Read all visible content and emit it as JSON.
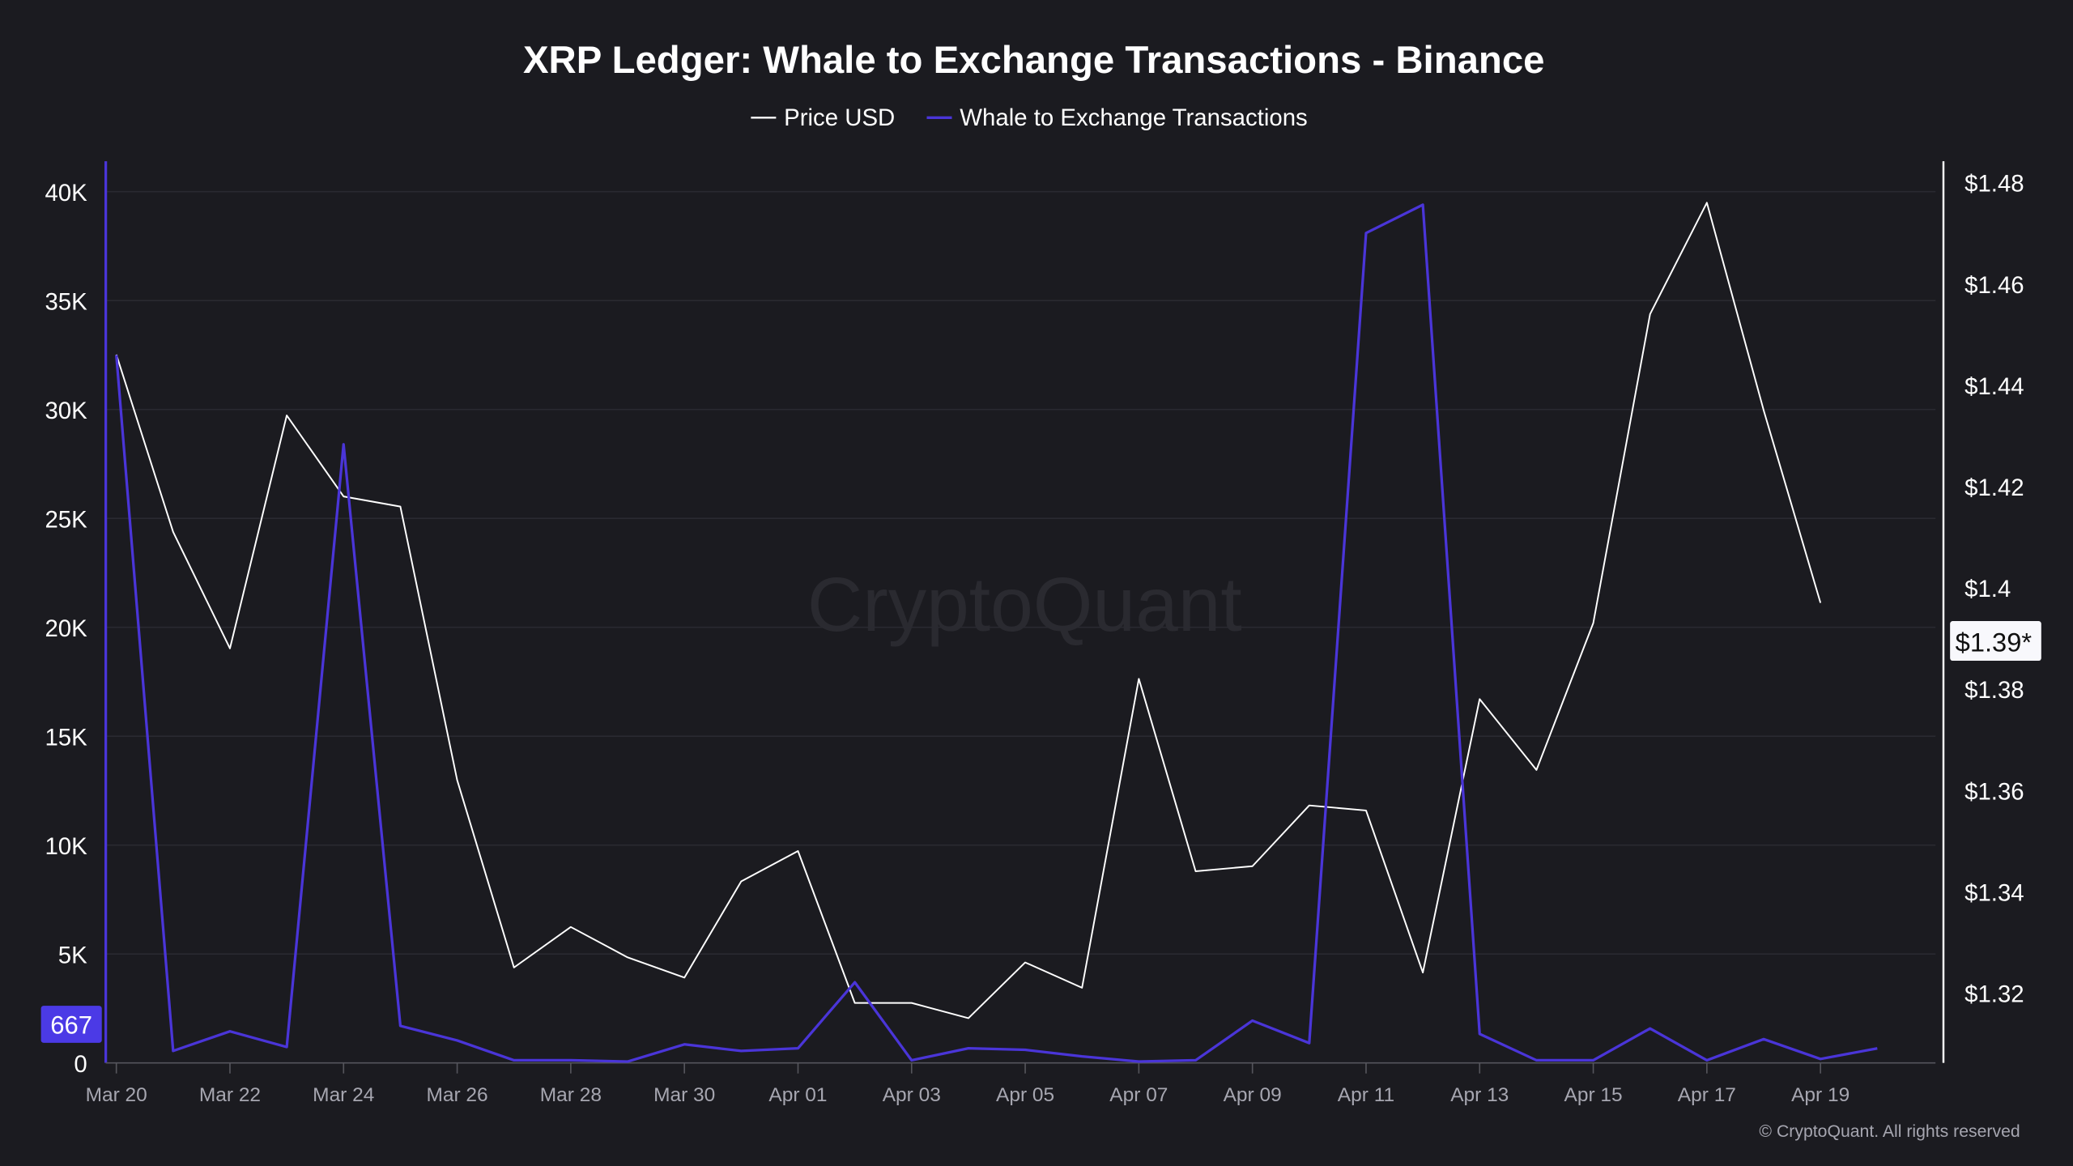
{
  "chart_data": {
    "type": "line",
    "title": "XRP Ledger: Whale to Exchange Transactions - Binance",
    "legend": {
      "placement": "top-center"
    },
    "x": [
      "Mar 20",
      "Mar 21",
      "Mar 22",
      "Mar 23",
      "Mar 24",
      "Mar 25",
      "Mar 26",
      "Mar 27",
      "Mar 28",
      "Mar 29",
      "Mar 30",
      "Mar 31",
      "Apr 01",
      "Apr 02",
      "Apr 03",
      "Apr 04",
      "Apr 05",
      "Apr 06",
      "Apr 07",
      "Apr 08",
      "Apr 09",
      "Apr 10",
      "Apr 11",
      "Apr 12",
      "Apr 13",
      "Apr 14",
      "Apr 15",
      "Apr 16",
      "Apr 17",
      "Apr 18",
      "Apr 19",
      "Apr 20"
    ],
    "x_tick_labels": [
      "Mar 20",
      "Mar 22",
      "Mar 24",
      "Mar 26",
      "Mar 28",
      "Mar 30",
      "Apr 01",
      "Apr 03",
      "Apr 05",
      "Apr 07",
      "Apr 09",
      "Apr 11",
      "Apr 13",
      "Apr 15",
      "Apr 17",
      "Apr 19"
    ],
    "series": [
      {
        "name": "Price USD",
        "axis": "right",
        "color": "#ffffff",
        "values": [
          1.446,
          1.411,
          1.388,
          1.434,
          1.418,
          1.416,
          1.362,
          1.325,
          1.333,
          1.327,
          1.323,
          1.342,
          1.348,
          1.318,
          1.318,
          1.315,
          1.326,
          1.321,
          1.382,
          1.344,
          1.345,
          1.357,
          1.356,
          1.324,
          1.378,
          1.364,
          1.393,
          1.454,
          1.476,
          1.435,
          1.397,
          null
        ]
      },
      {
        "name": "Whale to Exchange Transactions",
        "axis": "left",
        "color": "#4a35d8",
        "values": [
          32500,
          550,
          1450,
          730,
          28400,
          1700,
          1030,
          120,
          120,
          60,
          850,
          550,
          670,
          3700,
          120,
          670,
          600,
          300,
          60,
          120,
          1940,
          910,
          38100,
          39400,
          1330,
          120,
          120,
          1580,
          120,
          1090,
          180,
          667
        ]
      }
    ],
    "y_left": {
      "range": [
        0,
        40000
      ],
      "tick_labels": [
        "0",
        "5K",
        "10K",
        "15K",
        "20K",
        "25K",
        "30K",
        "35K",
        "40K"
      ]
    },
    "y_right": {
      "range": [
        1.306,
        1.48
      ],
      "tick_labels": [
        "$1.32",
        "$1.34",
        "$1.36",
        "$1.38",
        "$1.4",
        "$1.42",
        "$1.44",
        "$1.46",
        "$1.48"
      ],
      "tick_values": [
        1.32,
        1.34,
        1.36,
        1.38,
        1.4,
        1.42,
        1.44,
        1.46,
        1.48
      ]
    },
    "grid": true,
    "last_value_labels": {
      "left": "667",
      "right": "$1.39*"
    }
  },
  "watermark": "CryptoQuant",
  "footer": "© CryptoQuant. All rights reserved",
  "colors": {
    "background": "#1b1b20",
    "accent": "#4a35d8",
    "label_badge": "#4b3ae6"
  }
}
